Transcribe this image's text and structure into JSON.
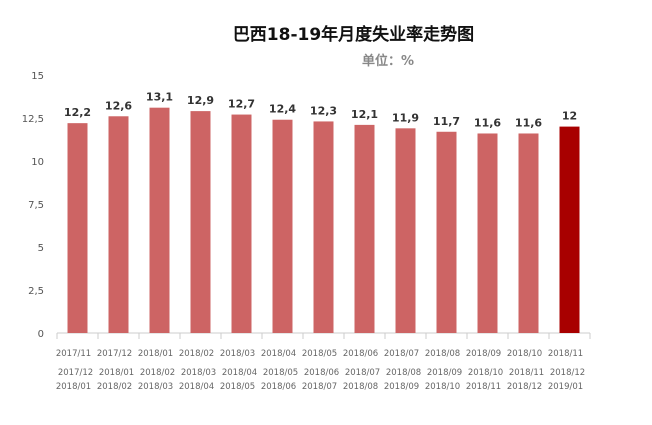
{
  "chart_data": {
    "type": "bar",
    "title": "巴西18-19年月度失业率走势图",
    "unit_label": "单位：%",
    "categories": [
      [
        "2017/11",
        "2017/12",
        "2018/01"
      ],
      [
        "2017/12",
        "2018/01",
        "2018/02"
      ],
      [
        "2018/01",
        "2018/02",
        "2018/03"
      ],
      [
        "2018/02",
        "2018/03",
        "2018/04"
      ],
      [
        "2018/03",
        "2018/04",
        "2018/05"
      ],
      [
        "2018/04",
        "2018/05",
        "2018/06"
      ],
      [
        "2018/05",
        "2018/06",
        "2018/07"
      ],
      [
        "2018/06",
        "2018/07",
        "2018/08"
      ],
      [
        "2018/07",
        "2018/08",
        "2018/09"
      ],
      [
        "2018/08",
        "2018/09",
        "2018/10"
      ],
      [
        "2018/09",
        "2018/10",
        "2018/11"
      ],
      [
        "2018/10",
        "2018/11",
        "2018/12"
      ],
      [
        "2018/11",
        "2018/12",
        "2019/01"
      ]
    ],
    "values": [
      12.2,
      12.6,
      13.1,
      12.9,
      12.7,
      12.4,
      12.3,
      12.1,
      11.9,
      11.7,
      11.6,
      11.6,
      12
    ],
    "value_labels": [
      "12,2",
      "12,6",
      "13,1",
      "12,9",
      "12,7",
      "12,4",
      "12,3",
      "12,1",
      "11,9",
      "11,7",
      "11,6",
      "11,6",
      "12"
    ],
    "ylim": [
      0,
      15
    ],
    "yticks": [
      0,
      2.5,
      5,
      7.5,
      10,
      12.5,
      15
    ],
    "ytick_labels": [
      "0",
      "2,5",
      "5",
      "7,5",
      "10",
      "12,5",
      "15"
    ],
    "bar_color": "#cd6464",
    "highlight_color": "#a80000",
    "highlight_index": 12,
    "xlabel": "",
    "ylabel": "",
    "grid": false
  }
}
